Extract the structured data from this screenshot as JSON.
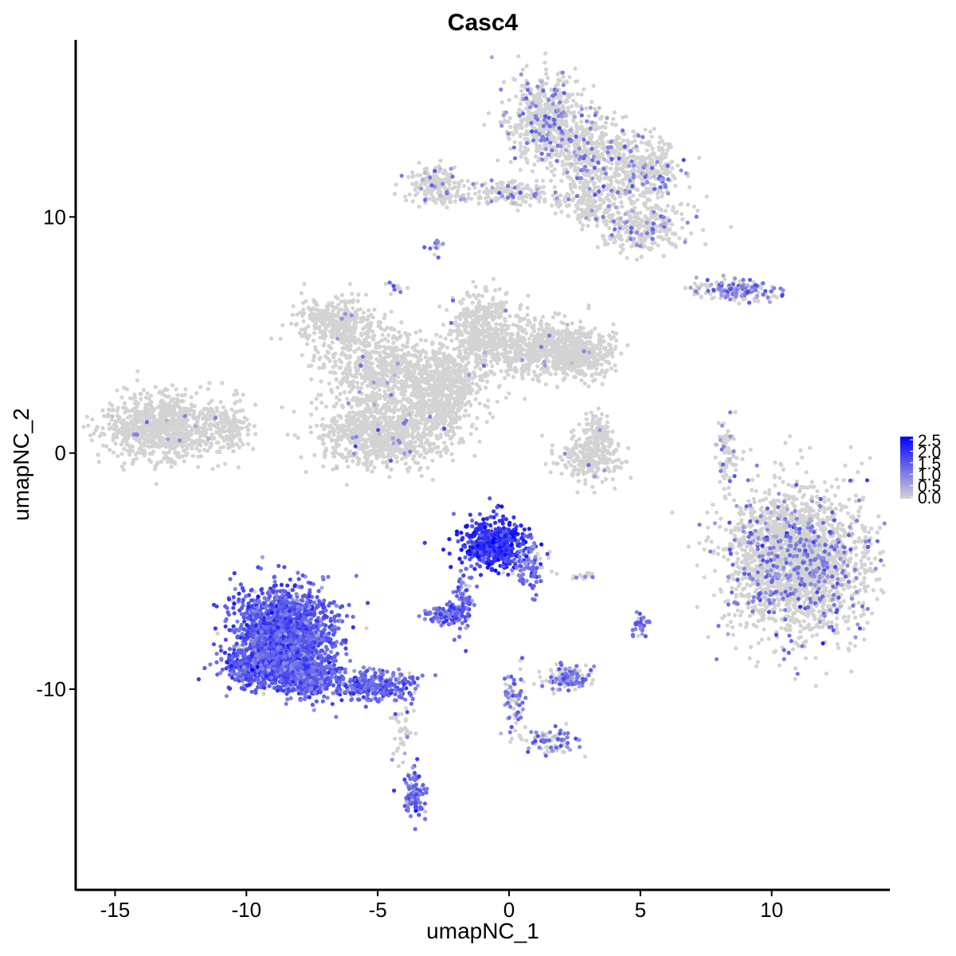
{
  "chart_data": {
    "type": "scatter",
    "title": "Casc4",
    "xlabel": "umapNC_1",
    "ylabel": "umapNC_2",
    "xlim": [
      -16.5,
      14.5
    ],
    "ylim": [
      -18.5,
      17.5
    ],
    "x_ticks": [
      -15,
      -10,
      -5,
      0,
      5,
      10
    ],
    "y_ticks": [
      -10,
      0,
      10
    ],
    "x_tick_labels": [
      "-15",
      "-10",
      "-5",
      "0",
      "5",
      "10"
    ],
    "y_tick_labels": [
      "-10",
      "0",
      "10"
    ],
    "grid": false,
    "color_scale": {
      "low": "#d3d3d3",
      "high": "#0000ff",
      "min": 0.0,
      "max": 2.5,
      "legend_labels": [
        "2.5",
        "2.0",
        "1.5",
        "1.0",
        "0.5",
        "0.0"
      ],
      "legend_position": "right"
    },
    "clusters": [
      {
        "cx": -13.2,
        "cy": 1.1,
        "sx": 1.3,
        "sy": 0.8,
        "n": 900,
        "expr_prob": 0.01,
        "expr_mean": 0.8
      },
      {
        "cx": -10.6,
        "cy": 1.2,
        "sx": 0.5,
        "sy": 0.6,
        "n": 120,
        "expr_prob": 0.0,
        "expr_mean": 0.5
      },
      {
        "cx": -6.6,
        "cy": 5.5,
        "sx": 0.9,
        "sy": 0.6,
        "n": 350,
        "expr_prob": 0.01,
        "expr_mean": 0.8
      },
      {
        "cx": -5.0,
        "cy": 3.6,
        "sx": 1.3,
        "sy": 1.0,
        "n": 500,
        "expr_prob": 0.01,
        "expr_mean": 0.8
      },
      {
        "cx": -2.7,
        "cy": 3.0,
        "sx": 1.2,
        "sy": 1.0,
        "n": 500,
        "expr_prob": 0.01,
        "expr_mean": 0.8
      },
      {
        "cx": -1.1,
        "cy": 5.3,
        "sx": 0.7,
        "sy": 0.9,
        "n": 400,
        "expr_prob": 0.01,
        "expr_mean": 0.8
      },
      {
        "cx": 1.2,
        "cy": 4.4,
        "sx": 1.3,
        "sy": 0.7,
        "n": 600,
        "expr_prob": 0.01,
        "expr_mean": 0.8
      },
      {
        "cx": 2.8,
        "cy": 4.2,
        "sx": 0.7,
        "sy": 0.6,
        "n": 300,
        "expr_prob": 0.01,
        "expr_mean": 0.8
      },
      {
        "cx": -4.7,
        "cy": 0.9,
        "sx": 1.4,
        "sy": 0.9,
        "n": 900,
        "expr_prob": 0.02,
        "expr_mean": 0.8
      },
      {
        "cx": -2.5,
        "cy": 2.4,
        "sx": 0.5,
        "sy": 1.0,
        "n": 200,
        "expr_prob": 0.0,
        "expr_mean": 0.5
      },
      {
        "cx": 3.1,
        "cy": -0.2,
        "sx": 0.7,
        "sy": 0.6,
        "n": 250,
        "expr_prob": 0.01,
        "expr_mean": 0.8
      },
      {
        "cx": 3.4,
        "cy": 0.8,
        "sx": 0.3,
        "sy": 0.6,
        "n": 80,
        "expr_prob": 0.0,
        "expr_mean": 0.5
      },
      {
        "cx": 1.5,
        "cy": 14.0,
        "sx": 0.9,
        "sy": 1.2,
        "n": 600,
        "expr_prob": 0.15,
        "expr_mean": 1.0
      },
      {
        "cx": 3.3,
        "cy": 12.5,
        "sx": 0.9,
        "sy": 1.0,
        "n": 400,
        "expr_prob": 0.12,
        "expr_mean": 1.0
      },
      {
        "cx": 5.2,
        "cy": 11.9,
        "sx": 0.8,
        "sy": 0.8,
        "n": 300,
        "expr_prob": 0.12,
        "expr_mean": 1.0
      },
      {
        "cx": 5.0,
        "cy": 9.6,
        "sx": 1.0,
        "sy": 0.6,
        "n": 300,
        "expr_prob": 0.12,
        "expr_mean": 1.0
      },
      {
        "cx": -2.7,
        "cy": 11.3,
        "sx": 0.6,
        "sy": 0.5,
        "n": 200,
        "expr_prob": 0.05,
        "expr_mean": 0.9
      },
      {
        "cx": 0.0,
        "cy": 11.0,
        "sx": 1.0,
        "sy": 0.3,
        "n": 150,
        "expr_prob": 0.12,
        "expr_mean": 1.0
      },
      {
        "cx": 3.0,
        "cy": 10.6,
        "sx": 0.8,
        "sy": 0.5,
        "n": 150,
        "expr_prob": 0.05,
        "expr_mean": 0.9
      },
      {
        "cx": 8.7,
        "cy": 6.9,
        "sx": 1.0,
        "sy": 0.25,
        "n": 200,
        "expr_prob": 0.4,
        "expr_mean": 1.0
      },
      {
        "cx": 8.3,
        "cy": 0.0,
        "sx": 0.25,
        "sy": 0.8,
        "n": 80,
        "expr_prob": 0.15,
        "expr_mean": 0.9
      },
      {
        "cx": 11.0,
        "cy": -4.6,
        "sx": 1.5,
        "sy": 1.8,
        "n": 2200,
        "expr_prob": 0.16,
        "expr_mean": 1.0
      },
      {
        "cx": -0.6,
        "cy": -3.8,
        "sx": 0.75,
        "sy": 0.6,
        "n": 550,
        "expr_prob": 0.97,
        "expr_mean": 1.9
      },
      {
        "cx": 0.8,
        "cy": -4.8,
        "sx": 0.4,
        "sy": 0.6,
        "n": 100,
        "expr_prob": 0.7,
        "expr_mean": 1.2
      },
      {
        "cx": -1.7,
        "cy": -6.2,
        "sx": 0.2,
        "sy": 0.8,
        "n": 80,
        "expr_prob": 0.8,
        "expr_mean": 1.2
      },
      {
        "cx": -2.3,
        "cy": -6.8,
        "sx": 0.45,
        "sy": 0.25,
        "n": 120,
        "expr_prob": 0.85,
        "expr_mean": 1.3
      },
      {
        "cx": -8.6,
        "cy": -7.5,
        "sx": 1.1,
        "sy": 1.1,
        "n": 1400,
        "expr_prob": 0.97,
        "expr_mean": 1.45
      },
      {
        "cx": -9.3,
        "cy": -9.0,
        "sx": 0.9,
        "sy": 0.6,
        "n": 600,
        "expr_prob": 0.97,
        "expr_mean": 1.45
      },
      {
        "cx": -7.6,
        "cy": -9.3,
        "sx": 0.7,
        "sy": 0.6,
        "n": 400,
        "expr_prob": 0.97,
        "expr_mean": 1.35
      },
      {
        "cx": -5.3,
        "cy": -9.9,
        "sx": 1.0,
        "sy": 0.4,
        "n": 300,
        "expr_prob": 0.9,
        "expr_mean": 1.3
      },
      {
        "cx": -3.6,
        "cy": -14.5,
        "sx": 0.25,
        "sy": 0.6,
        "n": 100,
        "expr_prob": 0.8,
        "expr_mean": 1.2
      },
      {
        "cx": -4.1,
        "cy": -12.0,
        "sx": 0.3,
        "sy": 1.0,
        "n": 40,
        "expr_prob": 0.2,
        "expr_mean": 0.8
      },
      {
        "cx": 2.2,
        "cy": -9.5,
        "sx": 0.5,
        "sy": 0.3,
        "n": 150,
        "expr_prob": 0.5,
        "expr_mean": 1.0
      },
      {
        "cx": 0.2,
        "cy": -10.5,
        "sx": 0.25,
        "sy": 0.8,
        "n": 70,
        "expr_prob": 0.6,
        "expr_mean": 1.1
      },
      {
        "cx": 1.7,
        "cy": -12.2,
        "sx": 0.7,
        "sy": 0.3,
        "n": 80,
        "expr_prob": 0.6,
        "expr_mean": 1.1
      },
      {
        "cx": 5.0,
        "cy": -7.3,
        "sx": 0.2,
        "sy": 0.3,
        "n": 30,
        "expr_prob": 0.8,
        "expr_mean": 1.1
      },
      {
        "cx": -4.4,
        "cy": 7.0,
        "sx": 0.2,
        "sy": 0.2,
        "n": 15,
        "expr_prob": 0.3,
        "expr_mean": 1.0
      },
      {
        "cx": -2.8,
        "cy": 8.8,
        "sx": 0.2,
        "sy": 0.3,
        "n": 15,
        "expr_prob": 0.3,
        "expr_mean": 1.0
      },
      {
        "cx": 2.8,
        "cy": -5.2,
        "sx": 0.3,
        "sy": 0.1,
        "n": 15,
        "expr_prob": 0.2,
        "expr_mean": 0.8
      }
    ]
  }
}
